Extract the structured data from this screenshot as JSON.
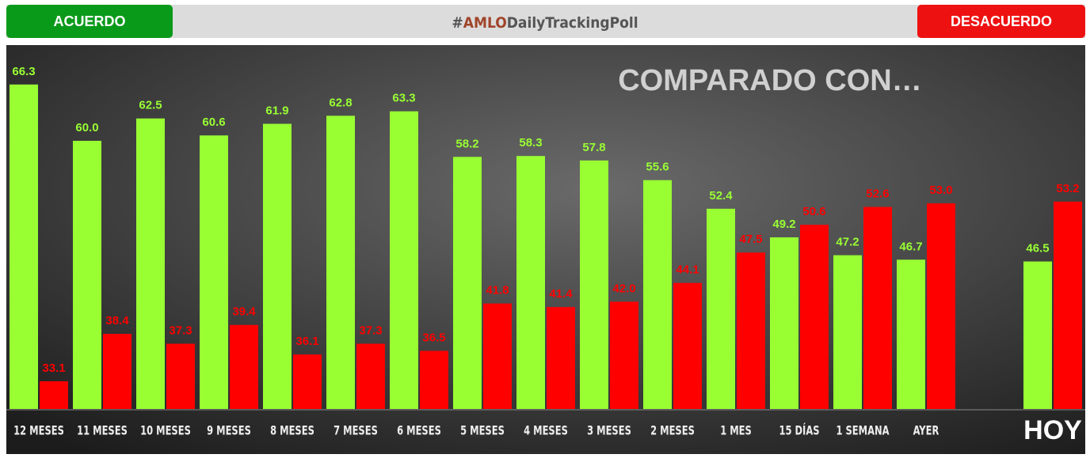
{
  "chart_data": {
    "type": "bar",
    "header_title_parts": [
      "#",
      "AMLO",
      "DailyTrackingPoll"
    ],
    "title": "COMPARADO CON…",
    "categories": [
      "12 MESES",
      "11 MESES",
      "10 MESES",
      "9 MESES",
      "8 MESES",
      "7 MESES",
      "6 MESES",
      "5 MESES",
      "4 MESES",
      "3 MESES",
      "2 MESES",
      "1 MES",
      "15 DÍAS",
      "1 SEMANA",
      "AYER",
      "HOY"
    ],
    "series": [
      {
        "name": "ACUERDO",
        "color": "#99ff33",
        "values": [
          66.3,
          60.0,
          62.5,
          60.6,
          61.9,
          62.8,
          63.3,
          58.2,
          58.3,
          57.8,
          55.6,
          52.4,
          49.2,
          47.2,
          46.7,
          46.5
        ],
        "value_labels": [
          "66.3",
          "60.0",
          "62.5",
          "60.6",
          "61.9",
          "62.8",
          "63.3",
          "58.2",
          "58.3",
          "57.8",
          "55.6",
          "52.4",
          "49.2",
          "47.2",
          "46.7",
          "46.5"
        ]
      },
      {
        "name": "DESACUERDO",
        "color": "#ff0000",
        "values": [
          33.1,
          38.4,
          37.3,
          39.4,
          36.1,
          37.3,
          36.5,
          41.8,
          41.4,
          42.0,
          44.1,
          47.5,
          50.6,
          52.6,
          53.0,
          53.2
        ],
        "value_labels": [
          "33.1",
          "38.4",
          "37.3",
          "39.4",
          "36.1",
          "37.3",
          "36.5",
          "41.8",
          "41.4",
          "42.0",
          "44.1",
          "47.5",
          "50.6",
          "52.6",
          "53.0",
          "53.2"
        ]
      }
    ],
    "ylim": [
      30,
      70
    ]
  }
}
